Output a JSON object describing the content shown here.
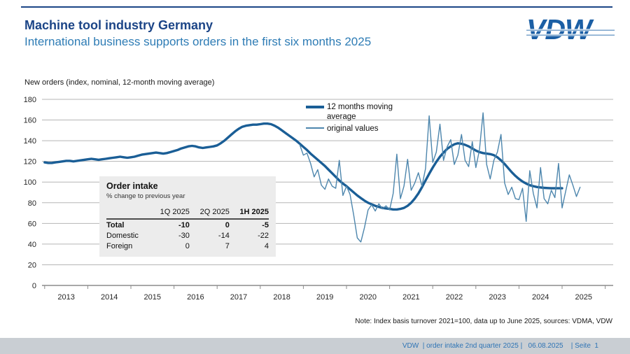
{
  "header": {
    "title": "Machine tool industry Germany",
    "subtitle": "International business supports orders in the first six months 2025",
    "logo_text": "VDW"
  },
  "chart_label": "New orders (index, nominal, 12-month moving average)",
  "legend": {
    "items": [
      {
        "label": "12 months moving average",
        "color": "#1a5e96"
      },
      {
        "label": "original values",
        "color": "#4d86ad"
      }
    ]
  },
  "table": {
    "title": "Order intake",
    "subtitle": "% change to previous year",
    "columns": [
      "",
      "1Q 2025",
      "2Q 2025",
      "1H 2025"
    ],
    "rows": [
      {
        "label": "Total",
        "values": [
          "-10",
          "0",
          "-5"
        ],
        "bold": true
      },
      {
        "label": "Domestic",
        "values": [
          "-30",
          "-14",
          "-22"
        ],
        "bold": false
      },
      {
        "label": "Foreign",
        "values": [
          "0",
          "7",
          "4"
        ],
        "bold": false
      }
    ]
  },
  "note": {
    "text": "Note: Index basis turnover 2021=100, data up to June 2025, sources: VDMA, VDW"
  },
  "footer": {
    "text": "VDW  | order intake 2nd quarter 2025 |   06.08.2025    | Seite  1"
  },
  "colors": {
    "title": "#1c4587",
    "subtitle": "#2e7cb5",
    "moving_average_line": "#1a5e96",
    "original_values_line": "#4d86ad",
    "footer_bar": "#c9ced3",
    "footer_text": "#2e74b5",
    "table_background": "#ececec",
    "gridline": "#b5b5b5"
  },
  "chart_data": {
    "type": "line",
    "title": "New orders (index, nominal, 12-month moving average)",
    "xlabel": "",
    "ylabel": "New orders index",
    "ylim": [
      0,
      180
    ],
    "ytick_step": 20,
    "grid": true,
    "legend_position": "upper middle",
    "years": [
      2013,
      2014,
      2015,
      2016,
      2017,
      2018,
      2019,
      2020,
      2021,
      2022,
      2023,
      2024,
      2025
    ],
    "x_unit": "monthly, decimal years",
    "series": [
      {
        "name": "12 months moving average",
        "data_name": "moving-average-line",
        "color": "#1a5e96",
        "width": 3.4,
        "start": 2013.0,
        "values": [
          119,
          118.5,
          118.5,
          119,
          119.5,
          120,
          120.5,
          120.5,
          120,
          120.5,
          121,
          121.5,
          122,
          122.5,
          122,
          121.5,
          122,
          122.5,
          123,
          123.5,
          124,
          124.5,
          124,
          123.5,
          124,
          124.5,
          125.5,
          126.5,
          127,
          127.5,
          128,
          128.5,
          128,
          127.5,
          128,
          129,
          130,
          131,
          132.5,
          133.5,
          134.5,
          135,
          134.5,
          133.5,
          133,
          133.5,
          134,
          134.5,
          135.5,
          137.5,
          140,
          143,
          146,
          149,
          151.5,
          153.5,
          154.5,
          155,
          155.5,
          155.5,
          156,
          156.5,
          156.5,
          156,
          154.5,
          152.5,
          150,
          147.5,
          145,
          142.5,
          140,
          137,
          134,
          131,
          127.5,
          124.5,
          121.5,
          118.5,
          115.5,
          112,
          108.5,
          105,
          101.5,
          98.5,
          96,
          93,
          90,
          87,
          84.5,
          82,
          80,
          78.5,
          77,
          76,
          75,
          74.5,
          74,
          73.5,
          73.5,
          74,
          75,
          77,
          80,
          84,
          89,
          95,
          101.5,
          108,
          114,
          119.5,
          124.5,
          128.5,
          132,
          134.5,
          136.5,
          137.5,
          137,
          136,
          134.5,
          132.5,
          130.5,
          129,
          128,
          127.5,
          127,
          126,
          124,
          121,
          117.5,
          113.5,
          109.5,
          106,
          103,
          100.5,
          98.5,
          97,
          96,
          95.2,
          94.8,
          94.4,
          94.2,
          94,
          94,
          94,
          94
        ]
      },
      {
        "name": "original values",
        "data_name": "original-values-line",
        "color": "#4d86ad",
        "width": 1.4,
        "start": 2018.9167,
        "values": [
          136,
          126,
          128,
          118,
          105,
          112,
          97,
          93,
          103,
          96,
          94,
          121,
          87,
          96,
          88,
          68,
          46,
          42,
          56,
          73,
          78,
          72,
          79,
          74,
          77,
          73,
          89,
          127,
          84,
          96,
          122,
          92,
          99,
          109,
          96,
          113,
          164,
          119,
          129,
          156,
          121,
          134,
          141,
          117,
          126,
          146,
          121,
          115,
          139,
          114,
          131,
          167,
          117,
          103,
          121,
          129,
          146,
          99,
          88,
          95,
          84,
          83,
          94,
          62,
          111,
          89,
          75,
          114,
          84,
          79,
          92,
          85,
          118,
          75,
          91,
          107,
          97,
          86,
          95
        ]
      }
    ]
  }
}
